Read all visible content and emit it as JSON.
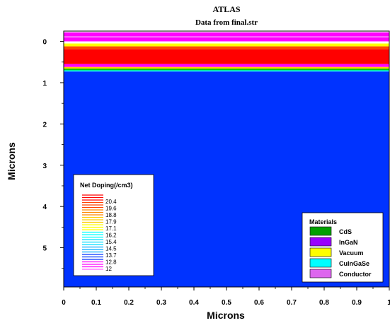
{
  "header": {
    "title": "ATLAS",
    "subtitle": "Data from final.str"
  },
  "chart_data": {
    "type": "heatmap",
    "title": "ATLAS",
    "subtitle": "Data from final.str",
    "xlabel": "Microns",
    "ylabel": "Microns",
    "xlim": [
      0,
      1
    ],
    "ylim": [
      -0.25,
      5.95
    ],
    "y_inverted": true,
    "x_ticks": [
      "0",
      "0.1",
      "0.2",
      "0.3",
      "0.4",
      "0.5",
      "0.6",
      "0.7",
      "0.8",
      "0.9",
      "1"
    ],
    "y_ticks": [
      "0",
      "1",
      "2",
      "3",
      "4",
      "5"
    ],
    "layers": [
      {
        "top": -0.25,
        "bottom": -0.22,
        "color": "#ffffff"
      },
      {
        "top": -0.22,
        "bottom": -0.12,
        "color": "#ff00ff"
      },
      {
        "top": -0.12,
        "bottom": -0.1,
        "color": "#ffaaff"
      },
      {
        "top": -0.1,
        "bottom": 0.0,
        "color": "#ff00ff"
      },
      {
        "top": 0.0,
        "bottom": 0.05,
        "color": "#ffffff"
      },
      {
        "top": 0.05,
        "bottom": 0.12,
        "color": "#ffff00"
      },
      {
        "top": 0.12,
        "bottom": 0.19,
        "color": "#ff4400"
      },
      {
        "top": 0.19,
        "bottom": 0.55,
        "color": "#ff0000"
      },
      {
        "top": 0.55,
        "bottom": 0.62,
        "color": "#ff00ff"
      },
      {
        "top": 0.62,
        "bottom": 0.66,
        "color": "#ffcc00"
      },
      {
        "top": 0.66,
        "bottom": 0.7,
        "color": "#00cc00"
      },
      {
        "top": 0.7,
        "bottom": 0.73,
        "color": "#00ffff"
      },
      {
        "top": 0.73,
        "bottom": 5.95,
        "color": "#0033ff"
      }
    ],
    "doping_legend": {
      "title": "Net Doping(/cm3)",
      "labels": [
        "20.4",
        "19.6",
        "18.8",
        "17.9",
        "17.1",
        "16.2",
        "15.4",
        "14.5",
        "13.7",
        "12.8",
        "12"
      ],
      "colors": [
        "#ff0000",
        "#ff4400",
        "#ff8800",
        "#ffcc00",
        "#ffff00",
        "#00ffff",
        "#00ddff",
        "#00aaff",
        "#0033ff",
        "#ff00ff",
        "#ff66ff"
      ]
    },
    "materials_legend": {
      "title": "Materials",
      "items": [
        {
          "label": "CdS",
          "color": "#00a000"
        },
        {
          "label": "InGaN",
          "color": "#9900ff"
        },
        {
          "label": "Vacuum",
          "color": "#ffff00"
        },
        {
          "label": "CuInGaSe",
          "color": "#00ffff"
        },
        {
          "label": "Conductor",
          "color": "#dd66ee"
        }
      ]
    }
  }
}
